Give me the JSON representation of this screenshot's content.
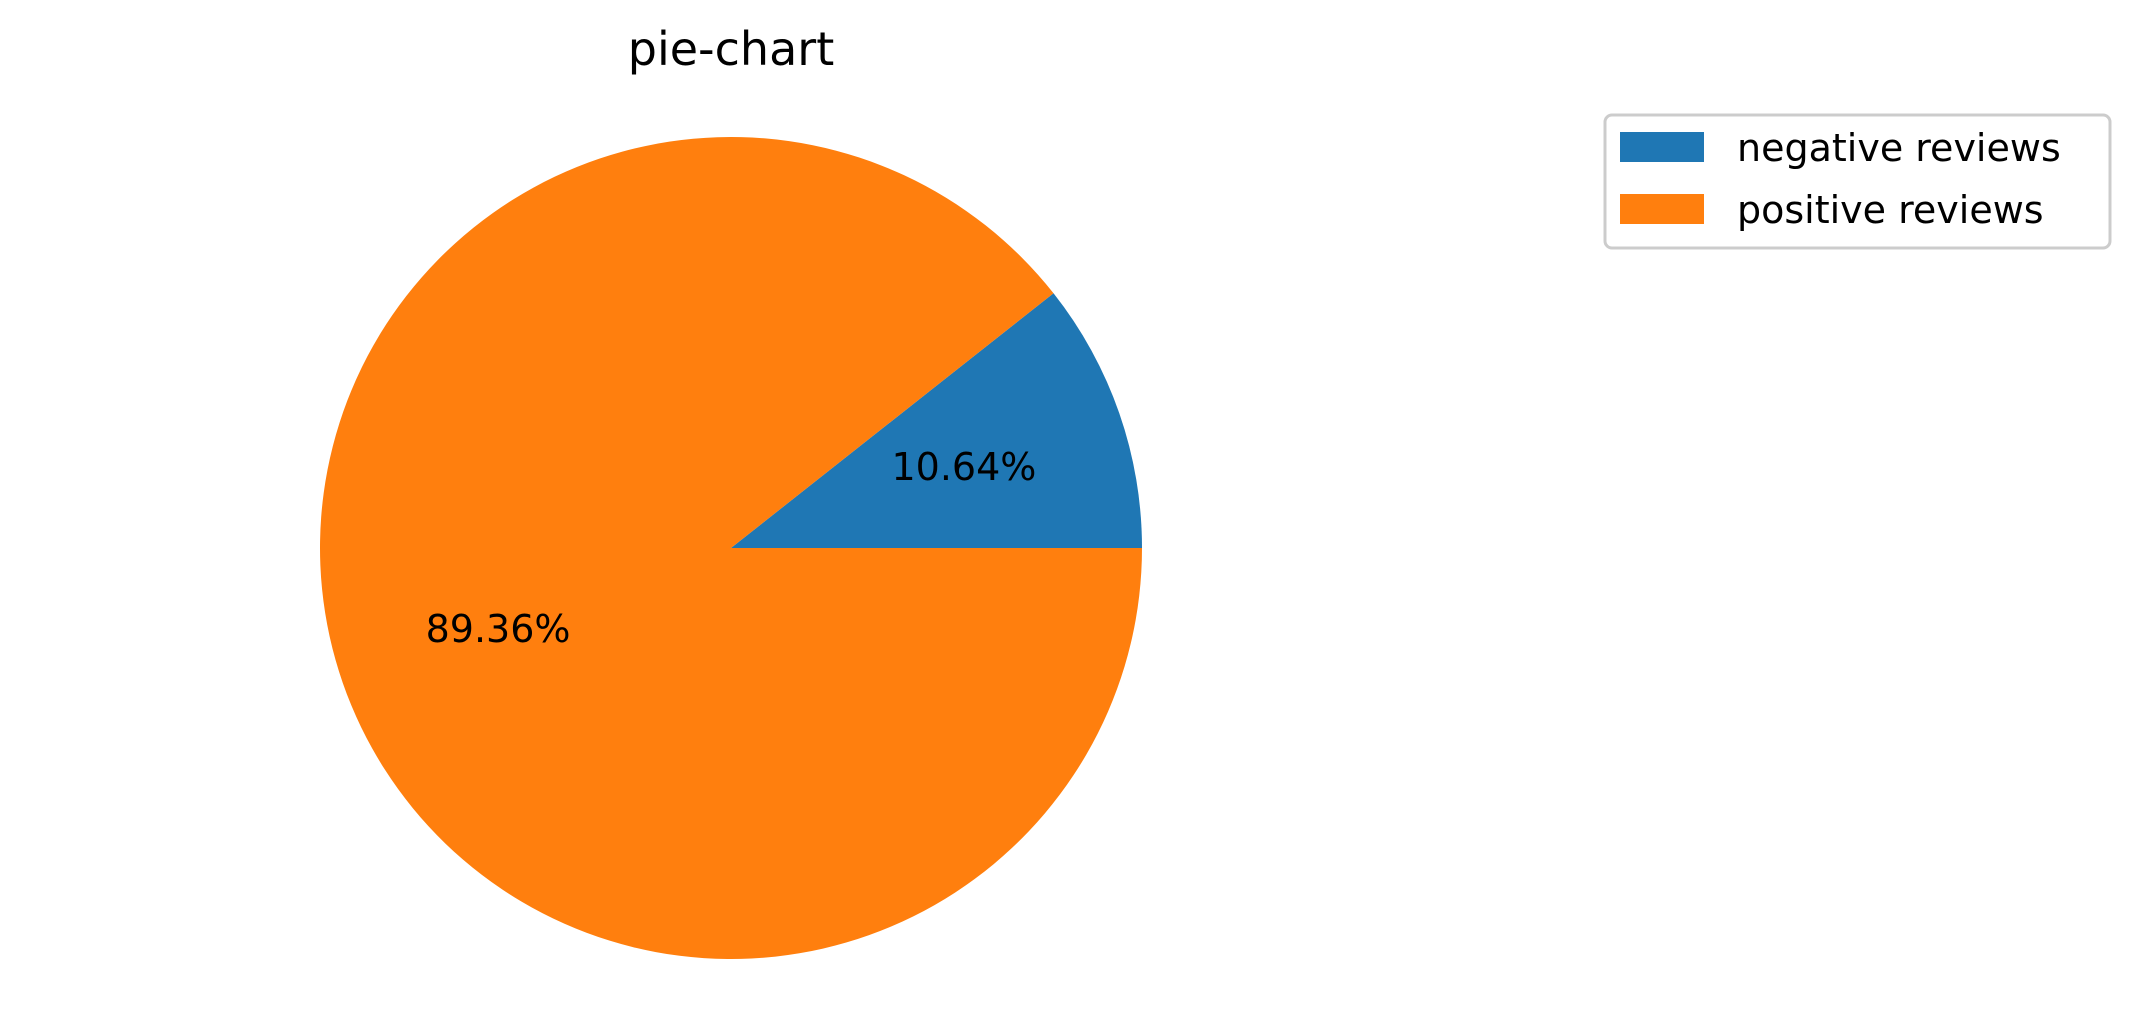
{
  "chart_data": {
    "type": "pie",
    "title": "pie-chart",
    "categories": [
      "negative reviews",
      "positive reviews"
    ],
    "values": [
      10.64,
      89.36
    ],
    "value_labels": [
      "10.64%",
      "89.36%"
    ],
    "colors": [
      "#1f77b4",
      "#ff7f0e"
    ],
    "start_angle_deg": 0,
    "direction": "counterclockwise",
    "legend": {
      "placement": "top-right",
      "entries": [
        "negative reviews",
        "positive reviews"
      ]
    }
  }
}
